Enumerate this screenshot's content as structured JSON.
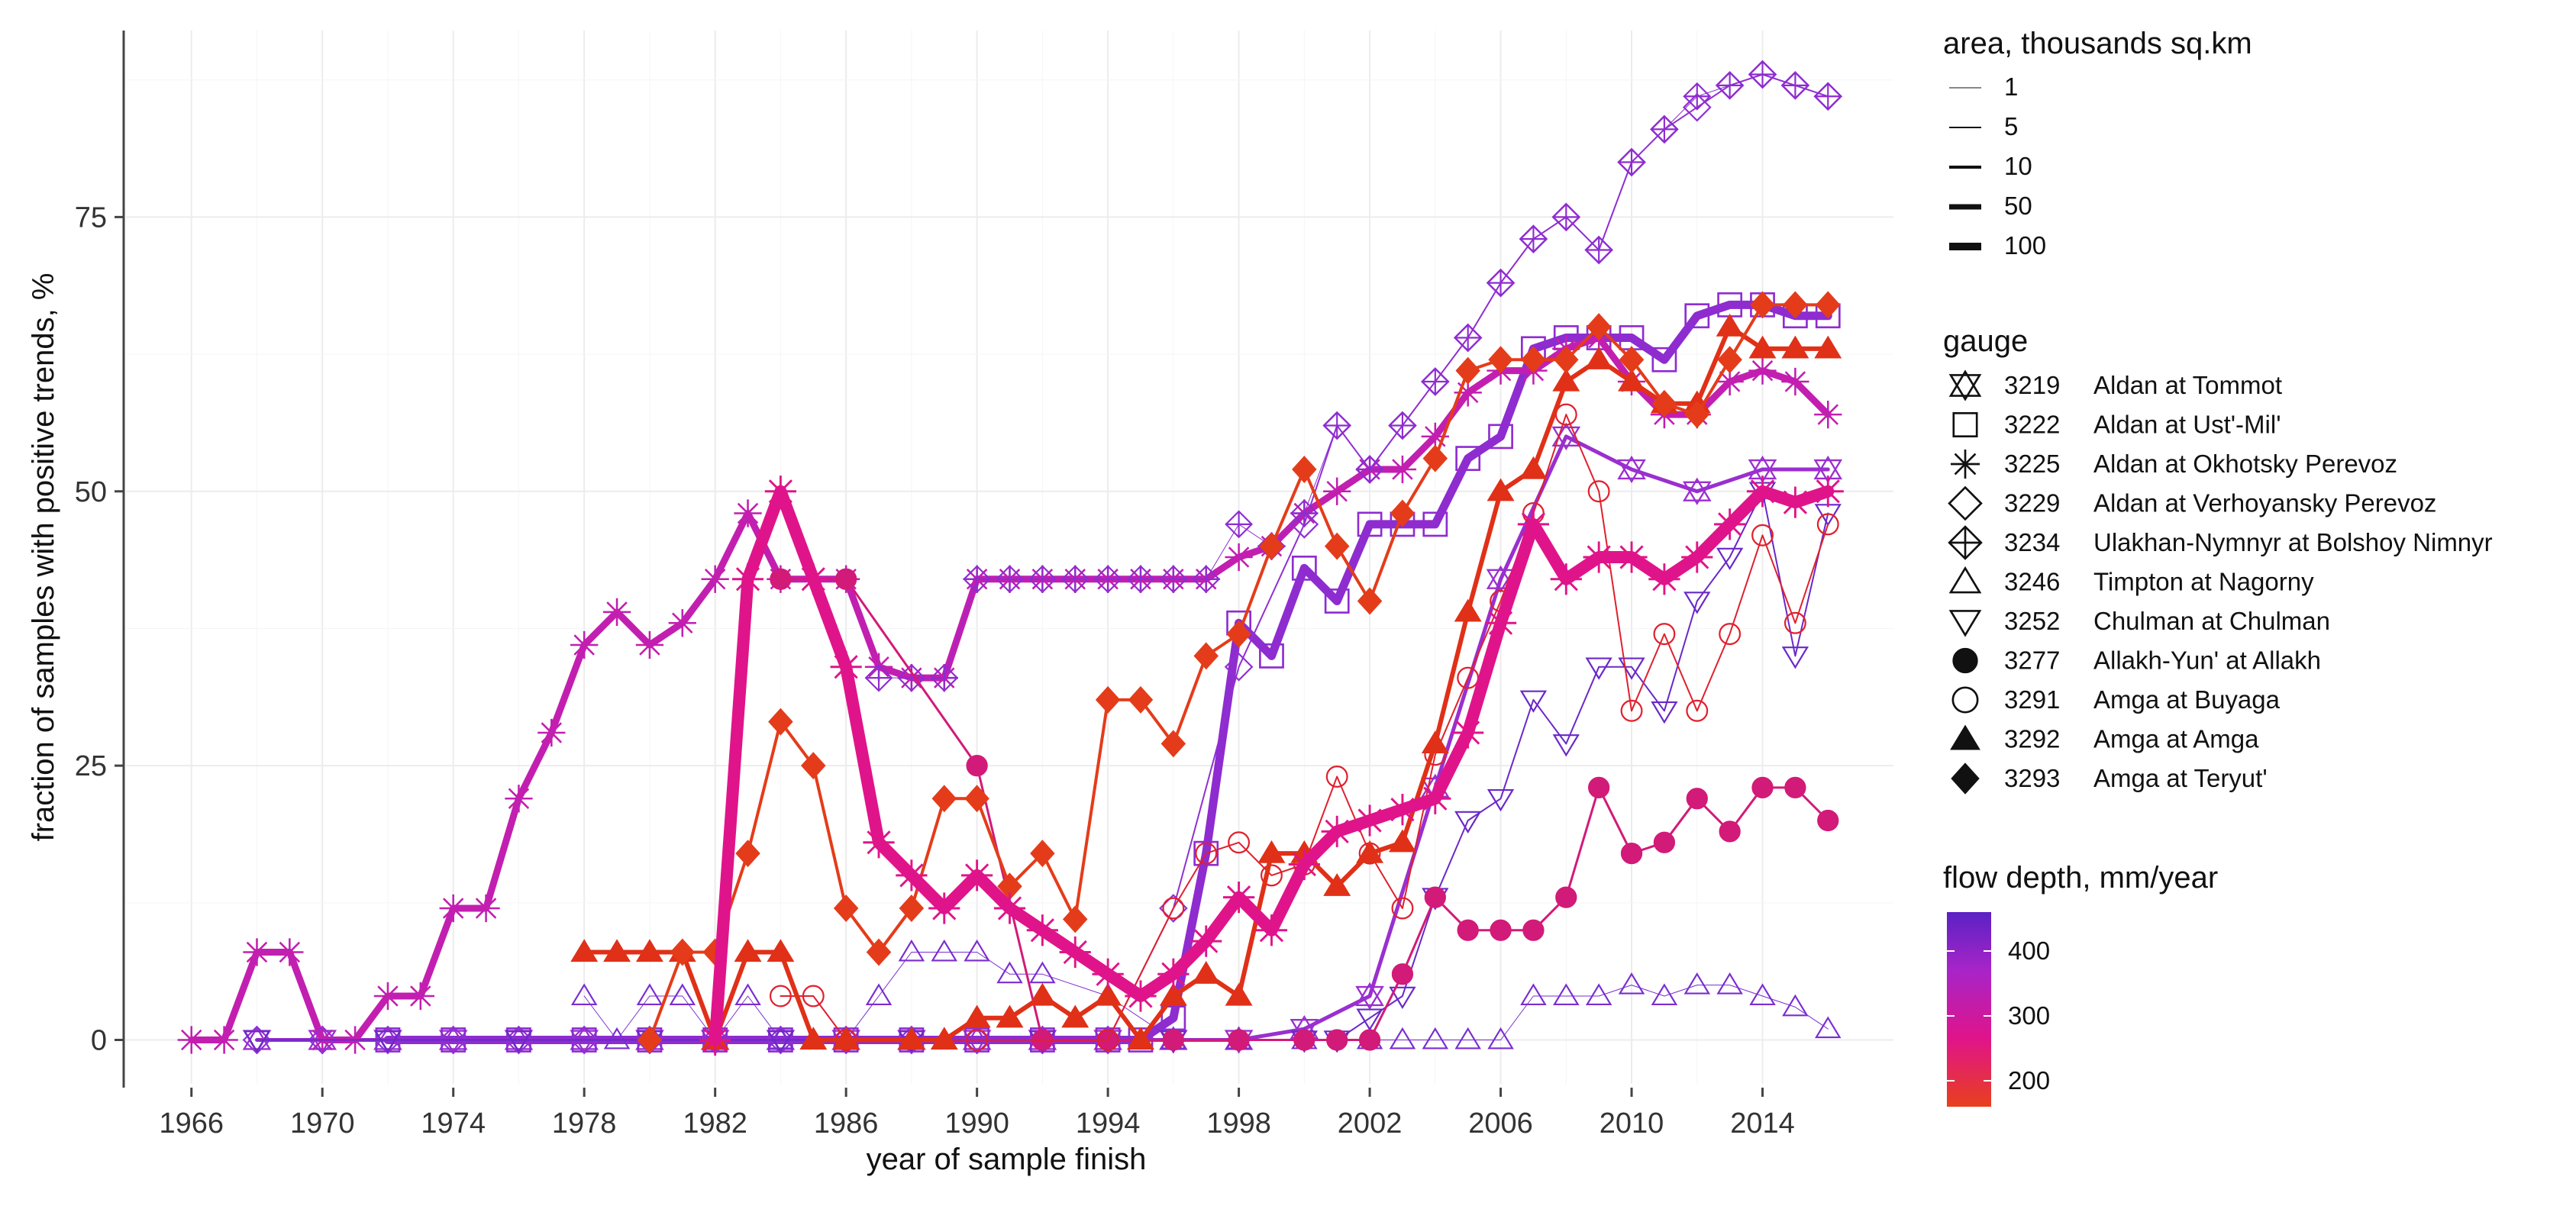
{
  "chart_data": {
    "type": "line",
    "title": "",
    "xlabel": "year of sample finish",
    "ylabel": "fraction of samples with positive trends, %",
    "xlim": [
      1964,
      2018
    ],
    "ylim": [
      -4,
      92
    ],
    "x_ticks": [
      1966,
      1970,
      1974,
      1978,
      1982,
      1986,
      1990,
      1994,
      1998,
      2002,
      2006,
      2010,
      2014
    ],
    "y_ticks": [
      0,
      25,
      50,
      75
    ],
    "grid": true,
    "legend_position": "right",
    "size_legend": {
      "title": "area, thousands sq.km",
      "entries": [
        "1",
        "5",
        "10",
        "50",
        "100"
      ]
    },
    "shape_legend": {
      "title": "gauge",
      "entries": [
        {
          "code": "3219",
          "name": "Aldan at Tommot",
          "shape": "hourglass-triangles"
        },
        {
          "code": "3222",
          "name": "Aldan at Ust'-Mil'",
          "shape": "open-square"
        },
        {
          "code": "3225",
          "name": "Aldan at Okhotsky Perevoz",
          "shape": "asterisk"
        },
        {
          "code": "3229",
          "name": "Aldan at Verhoyansky Perevoz",
          "shape": "open-diamond"
        },
        {
          "code": "3234",
          "name": "Ulakhan-Nymnyr at Bolshoy Nimnyr",
          "shape": "diamond-plus"
        },
        {
          "code": "3246",
          "name": "Timpton at Nagorny",
          "shape": "open-triangle"
        },
        {
          "code": "3252",
          "name": "Chulman at Chulman",
          "shape": "open-triangle-down"
        },
        {
          "code": "3277",
          "name": "Allakh-Yun' at Allakh",
          "shape": "filled-circle"
        },
        {
          "code": "3291",
          "name": "Amga at Buyaga",
          "shape": "open-circle"
        },
        {
          "code": "3292",
          "name": "Amga at Amga",
          "shape": "filled-triangle"
        },
        {
          "code": "3293",
          "name": "Amga at Teryut'",
          "shape": "filled-diamond"
        }
      ]
    },
    "color_legend": {
      "title": "flow depth, mm/year",
      "ticks": [
        "400",
        "300",
        "200"
      ],
      "tick_values": [
        400,
        300,
        200
      ],
      "range": [
        160,
        460
      ],
      "colors": [
        "#e8401c",
        "#e0148a",
        "#a824c8",
        "#5a22c4"
      ]
    },
    "series": [
      {
        "gauge": "3219",
        "shape": "hourglass-triangles",
        "color": "#9a2fcf",
        "width": 5,
        "x": [
          1968,
          1970,
          1972,
          1974,
          1976,
          1978,
          1980,
          1982,
          1984,
          1986,
          1988,
          1990,
          1992,
          1994,
          1996,
          1998,
          2000,
          2002,
          2004,
          2006,
          2008,
          2010,
          2012,
          2014,
          2016
        ],
        "y": [
          0,
          0,
          0,
          0,
          0,
          0,
          0,
          0,
          0,
          0,
          0,
          0,
          0,
          0,
          0,
          0,
          1,
          4,
          23,
          42,
          55,
          52,
          50,
          52,
          52
        ]
      },
      {
        "gauge": "3222",
        "shape": "open-square",
        "color": "#8e2cd0",
        "width": 11,
        "x": [
          1972,
          1974,
          1976,
          1978,
          1980,
          1982,
          1984,
          1986,
          1988,
          1990,
          1992,
          1994,
          1995,
          1996,
          1997,
          1998,
          1999,
          2000,
          2001,
          2002,
          2003,
          2004,
          2005,
          2006,
          2007,
          2008,
          2009,
          2010,
          2011,
          2012,
          2013,
          2014,
          2015,
          2016
        ],
        "y": [
          0,
          0,
          0,
          0,
          0,
          0,
          0,
          0,
          0,
          0,
          0,
          0,
          0,
          2,
          17,
          38,
          35,
          43,
          40,
          47,
          47,
          47,
          53,
          55,
          63,
          64,
          64,
          64,
          62,
          66,
          67,
          67,
          66,
          66
        ]
      },
      {
        "gauge": "3225",
        "shape": "asterisk",
        "color": "#c21fb0",
        "width": 9,
        "x": [
          1966,
          1967,
          1968,
          1969,
          1970,
          1971,
          1972,
          1973,
          1974,
          1975,
          1976,
          1977,
          1978,
          1979,
          1980,
          1981,
          1982,
          1983,
          1984,
          1985,
          1986,
          1987,
          1988,
          1989,
          1990,
          1991,
          1992,
          1993,
          1994,
          1995,
          1996,
          1997,
          1998,
          1999,
          2000,
          2001,
          2002,
          2003,
          2004,
          2005,
          2006,
          2007,
          2008,
          2009,
          2010,
          2011,
          2012,
          2013,
          2014,
          2015,
          2016
        ],
        "y": [
          0,
          0,
          8,
          8,
          0,
          0,
          4,
          4,
          12,
          12,
          22,
          28,
          36,
          39,
          36,
          38,
          42,
          48,
          42,
          42,
          42,
          34,
          33,
          33,
          42,
          42,
          42,
          42,
          42,
          42,
          42,
          42,
          44,
          45,
          48,
          50,
          52,
          52,
          55,
          59,
          61,
          61,
          63,
          64,
          60,
          57,
          57,
          60,
          61,
          60,
          57
        ]
      },
      {
        "gauge": "3229",
        "shape": "open-diamond",
        "color": "#9030d2",
        "width": 2,
        "x": [
          1968,
          1970,
          1972,
          1974,
          1976,
          1978,
          1980,
          1982,
          1984,
          1986,
          1988,
          1990,
          1992,
          1994,
          1996,
          1998,
          2000,
          2001,
          2002,
          2003,
          2004,
          2005,
          2006,
          2007,
          2008,
          2009,
          2010,
          2011,
          2012,
          2013,
          2014,
          2015,
          2016
        ],
        "y": [
          0,
          0,
          0,
          0,
          0,
          0,
          0,
          0,
          0,
          0,
          0,
          0,
          0,
          0,
          12,
          34,
          47,
          56,
          52,
          56,
          60,
          64,
          69,
          73,
          75,
          72,
          80,
          83,
          85,
          87,
          88,
          87,
          86
        ]
      },
      {
        "gauge": "3234",
        "shape": "diamond-plus",
        "color": "#8e2cd0",
        "width": 1,
        "x": [
          1987,
          1988,
          1989,
          1990,
          1991,
          1992,
          1993,
          1994,
          1995,
          1996,
          1997,
          1998,
          1999,
          2000,
          2001,
          2002,
          2003,
          2004,
          2005,
          2006,
          2007,
          2008,
          2009,
          2010,
          2011,
          2012,
          2013,
          2014,
          2015,
          2016
        ],
        "y": [
          33,
          33,
          33,
          42,
          42,
          42,
          42,
          42,
          42,
          42,
          42,
          47,
          45,
          48,
          56,
          52,
          56,
          60,
          64,
          69,
          73,
          75,
          72,
          80,
          83,
          86,
          87,
          88,
          87,
          86
        ]
      },
      {
        "gauge": "3246",
        "shape": "open-triangle",
        "color": "#7a2dd0",
        "width": 1,
        "x": [
          1978,
          1979,
          1980,
          1981,
          1982,
          1983,
          1984,
          1986,
          1987,
          1988,
          1989,
          1990,
          1991,
          1992,
          1994,
          1996,
          1998,
          2000,
          2002,
          2003,
          2004,
          2005,
          2006,
          2007,
          2008,
          2009,
          2010,
          2011,
          2012,
          2013,
          2014,
          2015,
          2016
        ],
        "y": [
          4,
          0,
          4,
          4,
          0,
          4,
          0,
          0,
          4,
          8,
          8,
          8,
          6,
          6,
          4,
          0,
          0,
          0,
          0,
          0,
          0,
          0,
          0,
          4,
          4,
          4,
          5,
          4,
          5,
          5,
          4,
          3,
          1
        ]
      },
      {
        "gauge": "3252",
        "shape": "open-triangle-down",
        "color": "#6a28c8",
        "width": 2,
        "x": [
          1968,
          1972,
          1976,
          1980,
          1984,
          1988,
          1992,
          1996,
          2000,
          2001,
          2002,
          2003,
          2004,
          2005,
          2006,
          2007,
          2008,
          2009,
          2010,
          2011,
          2012,
          2013,
          2014,
          2015,
          2016
        ],
        "y": [
          0,
          0,
          0,
          0,
          0,
          0,
          0,
          0,
          0,
          0,
          2,
          4,
          13,
          20,
          22,
          31,
          27,
          34,
          34,
          30,
          40,
          44,
          50,
          35,
          48
        ]
      },
      {
        "gauge": "3277",
        "shape": "filled-circle",
        "color": "#d21a78",
        "width": 3,
        "x": [
          1984,
          1986,
          1990,
          1992,
          1994,
          1996,
          1998,
          2000,
          2001,
          2002,
          2003,
          2004,
          2005,
          2006,
          2007,
          2008,
          2009,
          2010,
          2011,
          2012,
          2013,
          2014,
          2015,
          2016
        ],
        "y": [
          42,
          42,
          25,
          0,
          0,
          0,
          0,
          0,
          0,
          0,
          6,
          13,
          10,
          10,
          10,
          13,
          23,
          17,
          18,
          22,
          19,
          23,
          23,
          20
        ]
      },
      {
        "gauge": "3291",
        "shape": "open-circle",
        "color": "#e0202e",
        "width": 2,
        "x": [
          1984,
          1985,
          1986,
          1990,
          1994,
          1996,
          1997,
          1998,
          1999,
          2000,
          2001,
          2002,
          2003,
          2004,
          2005,
          2006,
          2007,
          2008,
          2009,
          2010,
          2011,
          2012,
          2013,
          2014,
          2015,
          2016
        ],
        "y": [
          4,
          4,
          0,
          0,
          0,
          12,
          17,
          18,
          15,
          16,
          24,
          17,
          12,
          26,
          33,
          40,
          48,
          57,
          50,
          30,
          37,
          30,
          37,
          46,
          38,
          47
        ]
      },
      {
        "gauge": "3292",
        "shape": "filled-triangle",
        "color": "#e03018",
        "width": 6,
        "x": [
          1978,
          1979,
          1980,
          1981,
          1982,
          1983,
          1984,
          1985,
          1986,
          1988,
          1989,
          1990,
          1991,
          1992,
          1993,
          1994,
          1995,
          1996,
          1997,
          1998,
          1999,
          2000,
          2001,
          2002,
          2003,
          2004,
          2005,
          2006,
          2007,
          2008,
          2009,
          2010,
          2011,
          2012,
          2013,
          2014,
          2015,
          2016
        ],
        "y": [
          8,
          8,
          8,
          8,
          0,
          8,
          8,
          0,
          0,
          0,
          0,
          2,
          2,
          4,
          2,
          4,
          0,
          4,
          6,
          4,
          17,
          17,
          14,
          17,
          18,
          27,
          39,
          50,
          52,
          60,
          62,
          60,
          58,
          58,
          65,
          63,
          63,
          63
        ]
      },
      {
        "gauge": "3293",
        "shape": "filled-diamond",
        "color": "#e43c1a",
        "width": 4,
        "x": [
          1980,
          1981,
          1982,
          1983,
          1984,
          1985,
          1986,
          1987,
          1988,
          1989,
          1990,
          1991,
          1992,
          1993,
          1994,
          1995,
          1996,
          1997,
          1998,
          1999,
          2000,
          2001,
          2002,
          2003,
          2004,
          2005,
          2006,
          2007,
          2008,
          2009,
          2010,
          2011,
          2012,
          2013,
          2014,
          2015,
          2016
        ],
        "y": [
          0,
          8,
          8,
          17,
          29,
          25,
          12,
          8,
          12,
          22,
          22,
          14,
          17,
          11,
          31,
          31,
          27,
          35,
          37,
          45,
          52,
          45,
          40,
          48,
          53,
          61,
          62,
          62,
          62,
          65,
          62,
          58,
          57,
          62,
          67,
          67,
          67
        ]
      },
      {
        "gauge": "3225",
        "shape": "asterisk",
        "color": "#e0148a",
        "width": 16,
        "x": [
          1982,
          1983,
          1984,
          1985,
          1986,
          1987,
          1988,
          1989,
          1990,
          1991,
          1992,
          1993,
          1994,
          1995,
          1996,
          1997,
          1998,
          1999,
          2000,
          2001,
          2002,
          2003,
          2004,
          2005,
          2006,
          2007,
          2008,
          2009,
          2010,
          2011,
          2012,
          2013,
          2014,
          2015,
          2016
        ],
        "y": [
          0,
          42,
          50,
          42,
          34,
          18,
          15,
          12,
          15,
          12,
          10,
          8,
          6,
          4,
          6,
          9,
          13,
          10,
          16,
          19,
          20,
          21,
          22,
          28,
          38,
          47,
          42,
          44,
          44,
          42,
          44,
          47,
          50,
          49,
          50
        ]
      }
    ]
  }
}
